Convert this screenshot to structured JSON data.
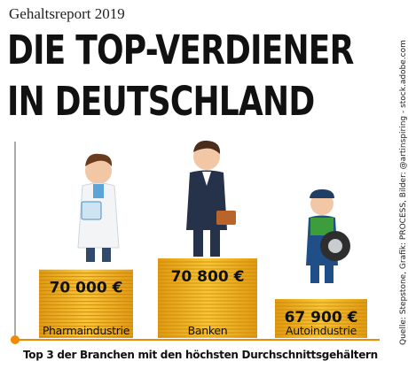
{
  "header": {
    "kicker": "Gehaltsreport 2019",
    "title_line1": "DIE TOP-VERDIENER",
    "title_line2": "IN DEUTSCHLAND"
  },
  "source": "Quelle: Stepstone, Grafik: PROCESS, Bilder: @artinspiring - stock.adobe.com",
  "chart_data": {
    "type": "bar",
    "title": "",
    "categories": [
      "Pharmaindustrie",
      "Banken",
      "Autoindustrie"
    ],
    "values": [
      70000,
      70800,
      67900
    ],
    "value_labels": [
      "70 000 €",
      "70 800 €",
      "67 900 €"
    ],
    "ylim": [
      0,
      71000
    ],
    "xlabel": "Top 3 der Branchen mit den höchsten Durchschnittsgehältern",
    "ylabel": "",
    "legend": "none",
    "grid": false,
    "colors": {
      "coin": "#f2b51c",
      "coin_edge": "#c9850a",
      "axis": "#f08a00",
      "text": "#111111"
    }
  }
}
